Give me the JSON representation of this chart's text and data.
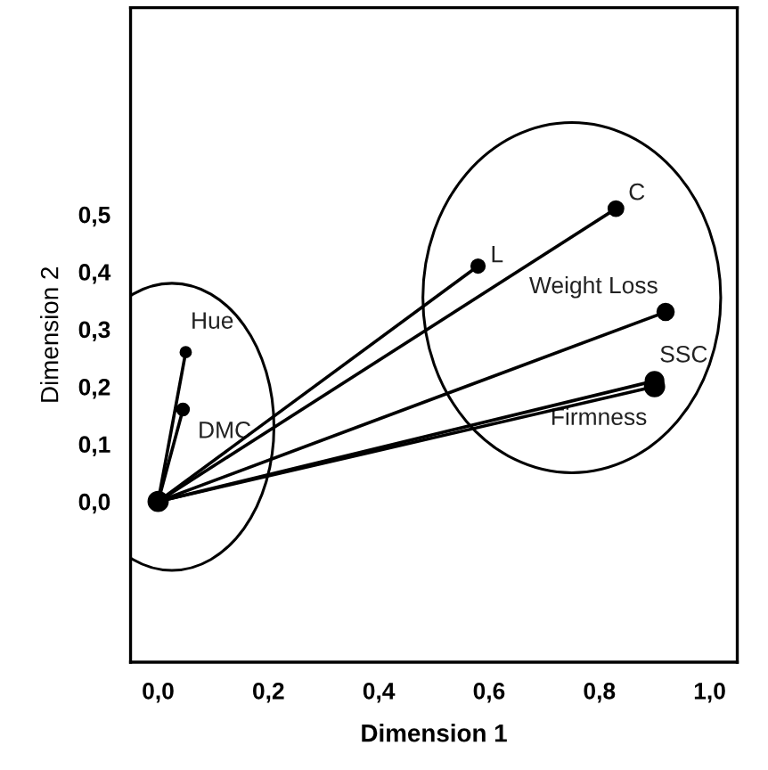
{
  "chart_data": {
    "type": "line",
    "xlabel": "Dimension 1",
    "ylabel": "Dimension 2",
    "xlim": [
      -0.05,
      1.05
    ],
    "ylim": [
      -0.28,
      0.86
    ],
    "xticks": [
      {
        "value": 0,
        "label": "0,0"
      },
      {
        "value": 0.2,
        "label": "0,2"
      },
      {
        "value": 0.4,
        "label": "0,4"
      },
      {
        "value": 0.6,
        "label": "0,6"
      },
      {
        "value": 0.8,
        "label": "0,8"
      },
      {
        "value": 1.0,
        "label": "1,0"
      }
    ],
    "yticks": [
      {
        "value": 0,
        "label": "0,0"
      },
      {
        "value": 0.1,
        "label": "0,1"
      },
      {
        "value": 0.2,
        "label": "0,2"
      },
      {
        "value": 0.3,
        "label": "0,3"
      },
      {
        "value": 0.4,
        "label": "0,4"
      },
      {
        "value": 0.5,
        "label": "0,5"
      }
    ],
    "marker": "circle",
    "line_style": "solid",
    "grid": false,
    "legend": false,
    "series": [
      {
        "name": "Hue",
        "color": "#000000",
        "x": [
          0,
          0.05
        ],
        "values": [
          0,
          0.26
        ]
      },
      {
        "name": "DMC",
        "color": "#000000",
        "x": [
          0,
          0.045
        ],
        "values": [
          0,
          0.16
        ]
      },
      {
        "name": "L",
        "color": "#000000",
        "x": [
          0,
          0.58
        ],
        "values": [
          0,
          0.41
        ]
      },
      {
        "name": "C",
        "color": "#000000",
        "x": [
          0,
          0.83
        ],
        "values": [
          0,
          0.51
        ]
      },
      {
        "name": "Weight Loss",
        "color": "#000000",
        "x": [
          0,
          0.92
        ],
        "values": [
          0,
          0.33
        ]
      },
      {
        "name": "SSC",
        "color": "#000000",
        "x": [
          0,
          0.9
        ],
        "values": [
          0,
          0.21
        ]
      },
      {
        "name": "Firmness",
        "color": "#000000",
        "x": [
          0,
          0.9
        ],
        "values": [
          0,
          0.2
        ]
      }
    ]
  }
}
